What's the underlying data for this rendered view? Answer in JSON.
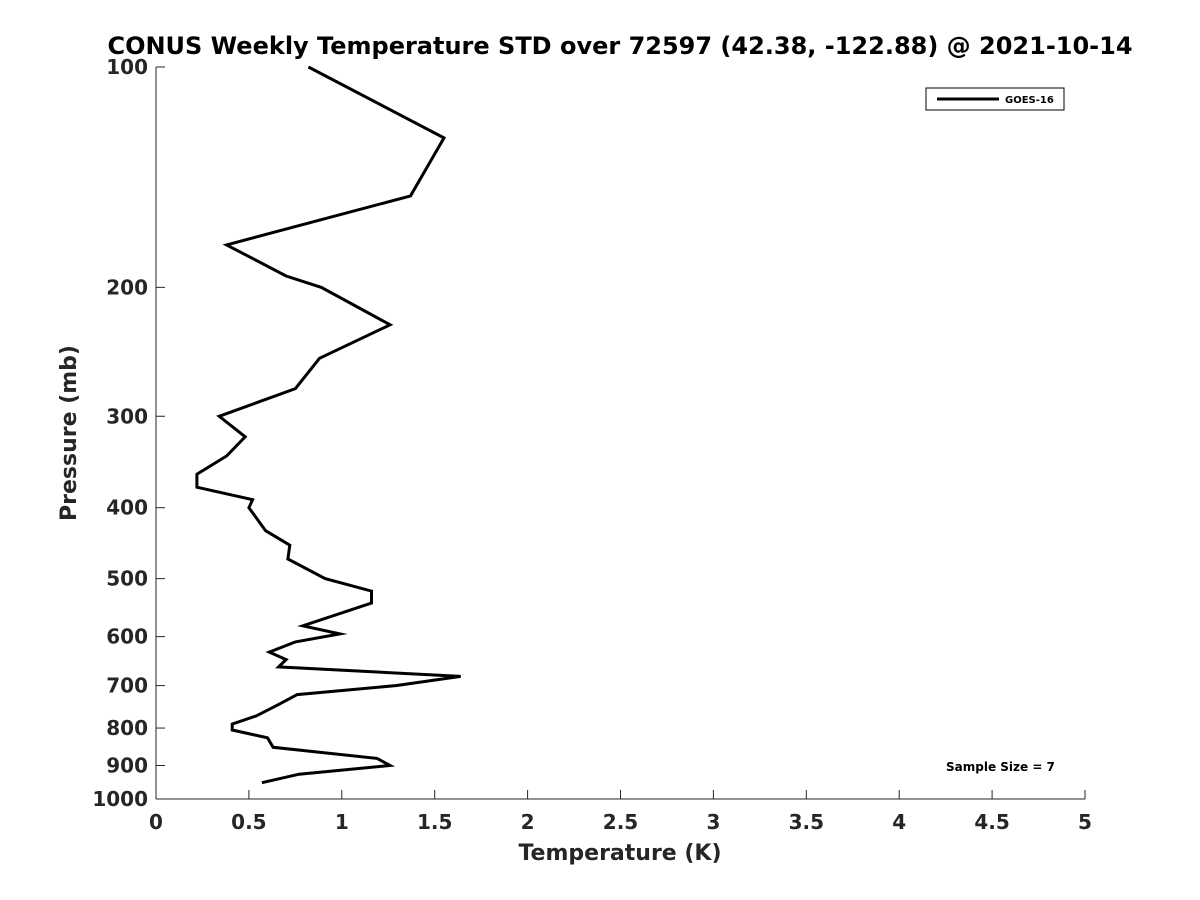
{
  "chart_data": {
    "type": "line",
    "title": "CONUS Weekly Temperature STD over 72597 (42.38, -122.88) @ 2021-10-14",
    "xlabel": "Temperature (K)",
    "ylabel": "Pressure (mb)",
    "xlim": [
      0,
      5
    ],
    "ylim": [
      100,
      1000
    ],
    "y_scale": "log",
    "y_reversed": true,
    "x_ticks": [
      "0",
      "0.5",
      "1",
      "1.5",
      "2",
      "2.5",
      "3",
      "3.5",
      "4",
      "4.5",
      "5"
    ],
    "y_ticks": [
      "100",
      "200",
      "300",
      "400",
      "500",
      "600",
      "700",
      "800",
      "900",
      "1000"
    ],
    "grid": false,
    "legend_position": "top-right",
    "series": [
      {
        "name": "GOES-16",
        "color": "#000000",
        "points": [
          [
            0.82,
            100
          ],
          [
            1.55,
            125
          ],
          [
            1.37,
            150
          ],
          [
            0.38,
            175
          ],
          [
            0.7,
            193
          ],
          [
            0.89,
            200
          ],
          [
            1.26,
            225
          ],
          [
            0.88,
            250
          ],
          [
            0.75,
            275
          ],
          [
            0.34,
            300
          ],
          [
            0.48,
            320
          ],
          [
            0.38,
            340
          ],
          [
            0.22,
            360
          ],
          [
            0.22,
            375
          ],
          [
            0.52,
            390
          ],
          [
            0.5,
            400
          ],
          [
            0.59,
            430
          ],
          [
            0.72,
            450
          ],
          [
            0.71,
            470
          ],
          [
            0.91,
            500
          ],
          [
            1.16,
            520
          ],
          [
            1.16,
            540
          ],
          [
            0.79,
            580
          ],
          [
            0.99,
            595
          ],
          [
            0.75,
            610
          ],
          [
            0.61,
            630
          ],
          [
            0.7,
            645
          ],
          [
            0.66,
            660
          ],
          [
            1.64,
            680
          ],
          [
            1.29,
            700
          ],
          [
            0.76,
            720
          ],
          [
            0.65,
            745
          ],
          [
            0.54,
            770
          ],
          [
            0.41,
            790
          ],
          [
            0.41,
            805
          ],
          [
            0.6,
            825
          ],
          [
            0.63,
            850
          ],
          [
            1.19,
            880
          ],
          [
            1.26,
            900
          ],
          [
            0.77,
            925
          ],
          [
            0.57,
            950
          ]
        ]
      }
    ],
    "annotations": [
      "Sample Size = 7"
    ]
  }
}
